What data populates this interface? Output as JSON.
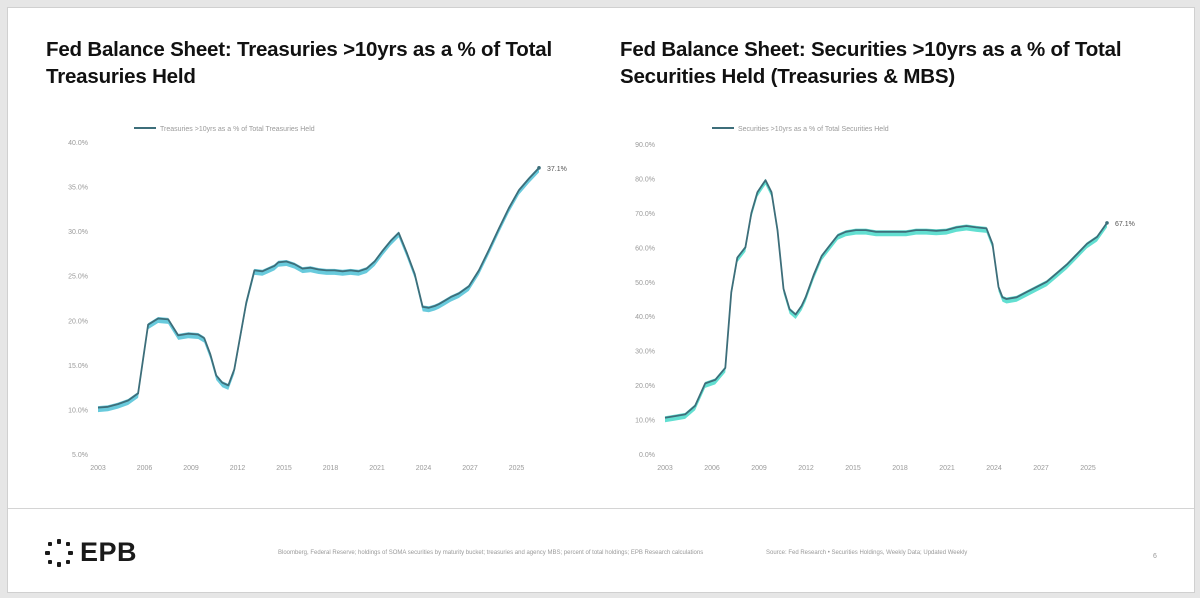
{
  "charts": {
    "left": {
      "title": "Fed Balance Sheet: Treasuries >10yrs as a % of Total Treasuries Held"
    },
    "right": {
      "title": "Fed Balance Sheet: Securities >10yrs as a % of Total Securities Held (Treasuries & MBS)"
    }
  },
  "footer": {
    "brand": "EPB",
    "note_left": "Bloomberg, Federal Reserve; holdings of SOMA securities by maturity bucket; treasuries and agency MBS; percent of total holdings; EPB Research calculations",
    "note_right": "Source: Fed Research • Securities Holdings, Weekly Data; Updated Weekly",
    "page": "6"
  },
  "colors": {
    "line": "#3d6e7a",
    "fill_left": "#35b8d0",
    "fill_right": "#2dd4c2",
    "axis_text": "#9a9a9a"
  },
  "chart_data": [
    {
      "type": "line",
      "title": "Fed Balance Sheet: Treasuries >10yrs as a % of Total Treasuries Held",
      "legend": "Treasuries >10yrs as a % of Total Treasuries Held",
      "end_label": "37.1%",
      "xlabel": "",
      "ylabel": "",
      "ylim": [
        5,
        40
      ],
      "yticks": [
        "5.0%",
        "10.0%",
        "15.0%",
        "20.0%",
        "25.0%",
        "30.0%",
        "35.0%",
        "40.0%"
      ],
      "xlim": [
        2003,
        2025
      ],
      "xticks": [
        "2003",
        "2006",
        "2009",
        "2012",
        "2015",
        "2018",
        "2021",
        "2024",
        "2027",
        "2025"
      ],
      "series": [
        {
          "name": "Treasuries >10yrs as a % of Total Treasuries Held",
          "x": [
            2003.0,
            2003.5,
            2004.0,
            2004.5,
            2005.0,
            2005.5,
            2006.0,
            2006.5,
            2007.0,
            2007.5,
            2008.0,
            2008.3,
            2008.6,
            2008.9,
            2009.2,
            2009.5,
            2009.8,
            2010.0,
            2010.4,
            2010.8,
            2011.2,
            2011.5,
            2011.8,
            2012.0,
            2012.4,
            2012.8,
            2013.2,
            2013.6,
            2014.0,
            2014.4,
            2014.8,
            2015.2,
            2015.6,
            2016.0,
            2016.4,
            2016.8,
            2017.2,
            2017.6,
            2018.0,
            2018.4,
            2018.8,
            2019.2,
            2019.5,
            2019.8,
            2020.0,
            2020.3,
            2020.6,
            2021.0,
            2021.5,
            2022.0,
            2022.5,
            2023.0,
            2023.5,
            2024.0,
            2024.5,
            2025.0
          ],
          "y": [
            10.2,
            10.3,
            10.6,
            11.0,
            11.8,
            19.5,
            20.2,
            20.1,
            18.3,
            18.5,
            18.4,
            18.0,
            16.2,
            13.8,
            13.0,
            12.7,
            14.5,
            17.0,
            22.0,
            25.6,
            25.5,
            25.8,
            26.1,
            26.5,
            26.6,
            26.3,
            25.8,
            25.9,
            25.7,
            25.6,
            25.6,
            25.5,
            25.6,
            25.5,
            25.8,
            26.6,
            27.8,
            28.9,
            29.8,
            27.6,
            25.2,
            21.5,
            21.4,
            21.6,
            21.8,
            22.2,
            22.6,
            23.0,
            23.8,
            25.6,
            27.9,
            30.3,
            32.6,
            34.6,
            35.9,
            37.1
          ]
        }
      ]
    },
    {
      "type": "line",
      "title": "Fed Balance Sheet: Securities >10yrs as a % of Total Securities Held (Treasuries & MBS)",
      "legend": "Securities >10yrs as a % of Total Securities Held",
      "end_label": "67.1%",
      "xlabel": "",
      "ylabel": "",
      "ylim": [
        0,
        90
      ],
      "yticks": [
        "0.0%",
        "10.0%",
        "20.0%",
        "30.0%",
        "40.0%",
        "50.0%",
        "60.0%",
        "70.0%",
        "80.0%",
        "90.0%"
      ],
      "xlim": [
        2003,
        2025
      ],
      "xticks": [
        "2003",
        "2006",
        "2009",
        "2012",
        "2015",
        "2018",
        "2021",
        "2024",
        "2027",
        "2025"
      ],
      "series": [
        {
          "name": "Securities >10yrs as a % of Total Securities Held",
          "x": [
            2003.0,
            2003.5,
            2004.0,
            2004.5,
            2005.0,
            2005.5,
            2006.0,
            2006.3,
            2006.6,
            2007.0,
            2007.3,
            2007.6,
            2008.0,
            2008.3,
            2008.6,
            2008.9,
            2009.2,
            2009.5,
            2009.8,
            2010.0,
            2010.4,
            2010.8,
            2011.2,
            2011.6,
            2012.0,
            2012.5,
            2013.0,
            2013.5,
            2014.0,
            2014.5,
            2015.0,
            2015.5,
            2016.0,
            2016.5,
            2017.0,
            2017.5,
            2018.0,
            2018.5,
            2019.0,
            2019.3,
            2019.6,
            2019.8,
            2020.0,
            2020.5,
            2021.0,
            2021.5,
            2022.0,
            2022.5,
            2023.0,
            2023.5,
            2024.0,
            2024.5,
            2025.0
          ],
          "y": [
            10.5,
            11.0,
            11.5,
            14.0,
            20.5,
            21.5,
            25.0,
            47.0,
            57.0,
            60.0,
            70.0,
            76.0,
            79.5,
            76.0,
            65.0,
            48.0,
            42.0,
            40.5,
            43.0,
            45.5,
            52.0,
            57.5,
            60.5,
            63.5,
            64.5,
            65.0,
            65.0,
            64.5,
            64.5,
            64.5,
            64.5,
            65.0,
            65.0,
            64.8,
            65.0,
            65.8,
            66.2,
            65.8,
            65.5,
            61.0,
            48.5,
            45.5,
            45.0,
            45.5,
            47.0,
            48.5,
            50.0,
            52.5,
            55.0,
            58.0,
            61.0,
            63.0,
            67.1
          ]
        }
      ]
    }
  ]
}
